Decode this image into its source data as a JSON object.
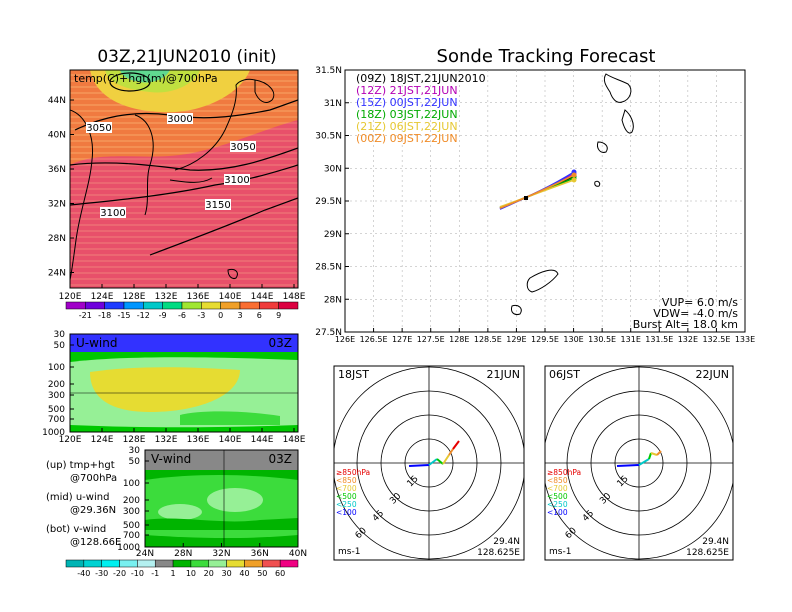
{
  "map_panel": {
    "title": "03Z,21JUN2010 (init)",
    "label": "temp(C)+hgt(m)@700hPa",
    "contour_labels": [
      "3000",
      "3050",
      "3050",
      "3100",
      "3100",
      "3150"
    ],
    "lat_ticks": [
      "44N",
      "40N",
      "36N",
      "32N",
      "28N",
      "24N"
    ],
    "lon_ticks": [
      "120E",
      "124E",
      "128E",
      "132E",
      "136E",
      "140E",
      "144E",
      "148E"
    ],
    "temp_colorbar": {
      "labels": [
        "-21",
        "-18",
        "-15",
        "-12",
        "-9",
        "-6",
        "-3",
        "0",
        "3",
        "6",
        "9"
      ],
      "colors": [
        "#a000c8",
        "#6e00dc",
        "#1e3cff",
        "#0096ff",
        "#00c8c8",
        "#00dc82",
        "#a0e632",
        "#e6dc32",
        "#f0a028",
        "#fa6e32",
        "#f03c3c",
        "#dc0040"
      ]
    }
  },
  "u_wind": {
    "label": "U-wind",
    "time": "03Z",
    "p_ticks": [
      "30",
      "50",
      "100",
      "200",
      "300",
      "500",
      "700",
      "1000"
    ],
    "lon_ticks": [
      "120E",
      "124E",
      "128E",
      "132E",
      "136E",
      "140E",
      "144E",
      "148E"
    ]
  },
  "v_wind": {
    "label": "V-wind",
    "time": "03Z",
    "p_ticks": [
      "30",
      "50",
      "100",
      "200",
      "300",
      "500",
      "700",
      "1000"
    ],
    "lat_ticks": [
      "24N",
      "28N",
      "32N",
      "36N",
      "40N"
    ]
  },
  "wind_colorbar": {
    "labels": [
      "-40",
      "-30",
      "-20",
      "-10",
      "-1",
      "1",
      "10",
      "20",
      "30",
      "40",
      "50",
      "60"
    ],
    "colors": [
      "#00b4b4",
      "#00d2d2",
      "#00f0f0",
      "#78f0f0",
      "#b4f0f0",
      "#888888",
      "#00b400",
      "#3cdc3c",
      "#96f096",
      "#e6dc32",
      "#f0a028",
      "#f05050",
      "#f00082"
    ]
  },
  "legend_notes": {
    "up_1": "(up) tmp+hgt",
    "up_2": "@700hPa",
    "mid_1": "(mid) u-wind",
    "mid_2": "@29.36N",
    "bot_1": "(bot) v-wind",
    "bot_2": "@128.66E"
  },
  "track_panel": {
    "title": "Sonde Tracking Forecast",
    "legend": [
      {
        "text": "(09Z) 18JST,21JUN2010",
        "color": "#000000"
      },
      {
        "text": "(12Z) 21JST,21JUN",
        "color": "#b400b4"
      },
      {
        "text": "(15Z) 00JST,22JUN",
        "color": "#3232ff"
      },
      {
        "text": "(18Z) 03JST,22JUN",
        "color": "#00aa00"
      },
      {
        "text": "(21Z) 06JST,22JUN",
        "color": "#e6c832"
      },
      {
        "text": "(00Z) 09JST,22JUN",
        "color": "#f08c28"
      }
    ],
    "lat_ticks": [
      "31.5N",
      "31N",
      "30.5N",
      "30N",
      "29.5N",
      "29N",
      "28.5N",
      "28N",
      "27.5N"
    ],
    "lon_ticks": [
      "126E",
      "126.5E",
      "127E",
      "127.5E",
      "128E",
      "128.5E",
      "129E",
      "129.5E",
      "130E",
      "130.5E",
      "131E",
      "131.5E",
      "132E",
      "132.5E",
      "133E"
    ],
    "info": {
      "vup": "VUP=  6.0  m/s",
      "vdw": "VDW= -4.0  m/s",
      "burst": "Burst Alt= 18.0  km"
    }
  },
  "hodographs": [
    {
      "time": "18JST",
      "date": "21JUN",
      "lat": "29.4N",
      "lon": "128.625E",
      "unit": "ms-1",
      "rings": [
        "15",
        "30",
        "45",
        "60"
      ],
      "levels": [
        {
          "text": "≥850hPa",
          "color": "#e60000"
        },
        {
          "text": "<850",
          "color": "#f08c28"
        },
        {
          "text": "<700",
          "color": "#e6c832"
        },
        {
          "text": "<500",
          "color": "#00c800"
        },
        {
          "text": "<250",
          "color": "#00c8c8"
        },
        {
          "text": "<100",
          "color": "#0000ff"
        }
      ]
    },
    {
      "time": "06JST",
      "date": "22JUN",
      "lat": "29.4N",
      "lon": "128.625E",
      "unit": "ms-1",
      "rings": [
        "15",
        "30",
        "45",
        "60"
      ],
      "levels": [
        {
          "text": "≥850hPa",
          "color": "#e60000"
        },
        {
          "text": "<850",
          "color": "#f08c28"
        },
        {
          "text": "<700",
          "color": "#e6c832"
        },
        {
          "text": "<500",
          "color": "#00c800"
        },
        {
          "text": "<250",
          "color": "#00c8c8"
        },
        {
          "text": "<100",
          "color": "#0000ff"
        }
      ]
    }
  ]
}
